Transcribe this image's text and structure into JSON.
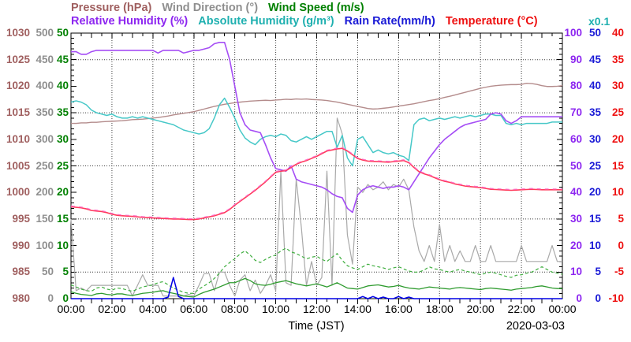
{
  "legend": {
    "row1": [
      {
        "id": "pressure",
        "label": "Pressure (hPa)",
        "color": "#a06060"
      },
      {
        "id": "wind-direction",
        "label": "Wind Direction (°)",
        "color": "#8f8f8f"
      },
      {
        "id": "wind-speed",
        "label": "Wind Speed (m/s)",
        "color": "#008000"
      }
    ],
    "row2": [
      {
        "id": "relative-humidity",
        "label": "Relative Humidity (%)",
        "color": "#8d26f0"
      },
      {
        "id": "absolute-humidity",
        "label": "Absolute Humidity (g/m³)",
        "color": "#1fb0b0"
      },
      {
        "id": "rain-rate",
        "label": "Rain Rate(mm/h)",
        "color": "#1a1ad6"
      },
      {
        "id": "temperature",
        "label": "Temperature (°C)",
        "color": "#ee1010"
      }
    ],
    "scale_note": {
      "text": "x0.1",
      "color": "#1fb0b0"
    }
  },
  "chart_data": {
    "type": "line",
    "title": "",
    "xlabel": "Time (JST)",
    "date": "2020-03-03",
    "x_range_hours": [
      0,
      24
    ],
    "sample_interval_minutes": 15,
    "x_tick_labels": [
      "00:00",
      "02:00",
      "04:00",
      "06:00",
      "08:00",
      "10:00",
      "12:00",
      "14:00",
      "16:00",
      "18:00",
      "20:00",
      "22:00",
      "00:00"
    ],
    "grid": {
      "vertical_hours": [
        2,
        4,
        6,
        8,
        10,
        12,
        14,
        16,
        18,
        20,
        22
      ],
      "horizontal_fracs": [
        0.1,
        0.3,
        0.5,
        0.7,
        0.9
      ]
    },
    "axes_left": [
      {
        "name": "pressure",
        "unit": "hPa",
        "min": 980,
        "max": 1030,
        "color": "#a06060",
        "labels": [
          "1030",
          "1025",
          "1020",
          "1015",
          "1010",
          "1005",
          "1000",
          "995",
          "990",
          "985",
          "980"
        ]
      },
      {
        "name": "wind-direction",
        "unit": "deg",
        "min": 0,
        "max": 500,
        "color": "#8f8f8f",
        "labels": [
          "500",
          "450",
          "400",
          "350",
          "300",
          "250",
          "200",
          "150",
          "100",
          "50",
          "0"
        ]
      },
      {
        "name": "wind-speed",
        "unit": "m/s",
        "min": 0,
        "max": 50,
        "color": "#008000",
        "labels": [
          "50",
          "45",
          "40",
          "35",
          "30",
          "25",
          "20",
          "15",
          "10",
          "5",
          "0"
        ]
      }
    ],
    "axes_right": [
      {
        "name": "relative-humidity",
        "unit": "%",
        "min": 0,
        "max": 100,
        "color": "#8d26f0",
        "labels": [
          "100",
          "90",
          "80",
          "70",
          "60",
          "50",
          "40",
          "30",
          "20",
          "10",
          "0"
        ]
      },
      {
        "name": "rain-rate",
        "unit": "mm/h",
        "min": 0,
        "max": 50,
        "color": "#1a1ad6",
        "labels": [
          "50",
          "45",
          "40",
          "35",
          "30",
          "25",
          "20",
          "15",
          "10",
          "5",
          "0"
        ]
      },
      {
        "name": "temperature",
        "unit": "degC",
        "min": -10,
        "max": 40,
        "color": "#ee1010",
        "labels": [
          "40",
          "35",
          "30",
          "25",
          "20",
          "15",
          "10",
          "5",
          "0",
          "-5",
          "-10"
        ]
      }
    ],
    "series": [
      {
        "name": "pressure",
        "color": "#b48c8c",
        "width": 1.4,
        "dash": null,
        "min": 980,
        "max": 1030,
        "values": [
          1013.0,
          1013.0,
          1013.1,
          1013.1,
          1013.2,
          1013.2,
          1013.3,
          1013.35,
          1013.4,
          1013.45,
          1013.5,
          1013.6,
          1013.7,
          1013.75,
          1013.8,
          1013.9,
          1014.0,
          1014.1,
          1014.25,
          1014.4,
          1014.6,
          1014.75,
          1014.9,
          1015.05,
          1015.2,
          1015.45,
          1015.7,
          1015.95,
          1016.2,
          1016.4,
          1016.6,
          1016.75,
          1016.9,
          1017.0,
          1017.1,
          1017.2,
          1017.25,
          1017.3,
          1017.35,
          1017.3,
          1017.4,
          1017.45,
          1017.55,
          1017.5,
          1017.6,
          1017.55,
          1017.6,
          1017.5,
          1017.45,
          1017.4,
          1017.3,
          1017.15,
          1017.0,
          1016.8,
          1016.6,
          1016.4,
          1016.2,
          1016.0,
          1015.8,
          1015.7,
          1015.75,
          1015.85,
          1015.95,
          1016.1,
          1016.25,
          1016.4,
          1016.55,
          1016.7,
          1016.9,
          1017.1,
          1017.3,
          1017.45,
          1017.65,
          1017.9,
          1018.1,
          1018.35,
          1018.6,
          1018.85,
          1019.1,
          1019.35,
          1019.6,
          1019.8,
          1020.0,
          1020.1,
          1020.2,
          1020.25,
          1020.3,
          1020.3,
          1020.35,
          1020.55,
          1020.5,
          1020.35,
          1020.1,
          1019.95,
          1019.95,
          1020.0,
          1020.1
        ]
      },
      {
        "name": "wind-direction",
        "color": "#a9a9a9",
        "width": 1.2,
        "dash": null,
        "min": 0,
        "max": 500,
        "values": [
          150,
          15,
          20,
          15,
          25,
          25,
          25,
          25,
          25,
          25,
          25,
          25,
          5,
          25,
          45,
          25,
          25,
          25,
          5,
          5,
          5,
          5,
          5,
          8,
          5,
          25,
          47,
          47,
          15,
          50,
          50,
          25,
          5,
          35,
          45,
          15,
          35,
          10,
          25,
          45,
          15,
          240,
          30,
          25,
          225,
          135,
          25,
          70,
          25,
          40,
          240,
          25,
          340,
          310,
          120,
          65,
          210,
          200,
          215,
          205,
          210,
          220,
          205,
          215,
          210,
          225,
          205,
          135,
          90,
          70,
          100,
          70,
          140,
          70,
          100,
          70,
          90,
          70,
          70,
          100,
          70,
          70,
          100,
          70,
          70,
          70,
          70,
          70,
          100,
          70,
          70,
          70,
          70,
          70,
          100,
          70,
          70
        ]
      },
      {
        "name": "wind-speed",
        "color": "#2e9b2e",
        "width": 1.3,
        "dash": null,
        "min": 0,
        "max": 50,
        "values": [
          1.3,
          1.0,
          0.8,
          0.7,
          0.6,
          0.9,
          1.0,
          0.8,
          0.7,
          0.9,
          0.9,
          0.7,
          0.6,
          0.8,
          1.0,
          1.1,
          1.2,
          1.4,
          1.5,
          1.2,
          1.0,
          0.8,
          0.5,
          0.4,
          0.3,
          0.8,
          1.2,
          1.5,
          1.8,
          2.2,
          2.6,
          3.0,
          3.0,
          3.4,
          3.8,
          3.4,
          2.8,
          2.6,
          2.5,
          2.7,
          3.0,
          3.2,
          3.4,
          3.1,
          2.8,
          2.6,
          2.4,
          2.6,
          2.8,
          2.5,
          2.2,
          2.6,
          3.0,
          2.5,
          2.0,
          1.9,
          1.8,
          2.1,
          2.4,
          2.5,
          2.6,
          2.4,
          2.2,
          2.3,
          2.5,
          2.2,
          2.0,
          1.9,
          1.8,
          2.0,
          2.2,
          2.1,
          2.0,
          1.9,
          1.8,
          2.0,
          2.1,
          2.0,
          1.9,
          1.8,
          1.7,
          1.9,
          2.0,
          1.9,
          1.8,
          1.7,
          1.6,
          1.8,
          1.9,
          2.0,
          2.1,
          2.3,
          2.4,
          2.2,
          2.0,
          1.9,
          1.9
        ]
      },
      {
        "name": "wind-gust",
        "color": "#3fae3f",
        "width": 1.2,
        "dash": "4,3",
        "min": 0,
        "max": 50,
        "values": [
          2.6,
          2.2,
          1.8,
          1.5,
          1.4,
          2.0,
          2.2,
          1.8,
          1.6,
          2.0,
          1.9,
          1.6,
          1.4,
          1.8,
          2.2,
          2.4,
          2.6,
          3.0,
          3.2,
          2.6,
          2.0,
          1.6,
          1.2,
          1.0,
          1.0,
          1.8,
          2.4,
          3.0,
          3.8,
          4.8,
          6.0,
          6.8,
          7.5,
          8.4,
          9.0,
          8.2,
          7.2,
          6.8,
          7.4,
          7.9,
          8.2,
          9.0,
          9.5,
          8.8,
          8.5,
          8.0,
          7.5,
          7.8,
          8.0,
          7.4,
          7.0,
          7.8,
          8.5,
          7.2,
          6.2,
          5.8,
          5.5,
          6.0,
          6.5,
          6.2,
          6.0,
          5.8,
          5.5,
          5.8,
          6.0,
          5.6,
          5.2,
          5.0,
          5.0,
          5.4,
          6.0,
          5.6,
          5.5,
          5.2,
          5.0,
          5.3,
          5.5,
          5.2,
          5.0,
          4.8,
          4.5,
          4.8,
          5.0,
          4.8,
          4.5,
          4.2,
          4.0,
          4.4,
          4.5,
          4.8,
          5.0,
          5.5,
          6.0,
          5.5,
          5.0,
          4.8,
          4.6
        ]
      },
      {
        "name": "absolute-humidity",
        "color": "#46c8c8",
        "width": 1.5,
        "dash": null,
        "min": 0,
        "max": 10,
        "values": [
          7.4,
          7.45,
          7.4,
          7.3,
          7.1,
          7.0,
          6.95,
          6.9,
          6.95,
          6.85,
          6.8,
          6.8,
          6.85,
          6.8,
          6.85,
          6.8,
          6.75,
          6.7,
          6.65,
          6.6,
          6.55,
          6.45,
          6.35,
          6.3,
          6.25,
          6.2,
          6.25,
          6.4,
          6.8,
          7.3,
          7.55,
          7.2,
          6.8,
          6.35,
          6.05,
          5.9,
          5.8,
          6.0,
          6.1,
          6.15,
          6.1,
          6.2,
          6.15,
          5.95,
          5.9,
          6.0,
          6.1,
          6.0,
          6.1,
          6.2,
          6.3,
          6.3,
          5.7,
          6.15,
          5.3,
          5.0,
          6.0,
          6.1,
          5.8,
          5.5,
          5.6,
          5.5,
          5.45,
          5.5,
          5.4,
          5.35,
          5.2,
          6.55,
          6.75,
          6.8,
          6.7,
          6.75,
          6.8,
          6.75,
          6.8,
          6.85,
          6.8,
          6.85,
          6.9,
          6.85,
          6.9,
          6.95,
          6.95,
          6.9,
          6.9,
          6.6,
          6.55,
          6.6,
          6.55,
          6.6,
          6.6,
          6.6,
          6.6,
          6.6,
          6.65,
          6.65,
          6.65
        ]
      },
      {
        "name": "relative-humidity",
        "color": "#a54df5",
        "width": 1.6,
        "dash": null,
        "min": 0,
        "max": 100,
        "values": [
          93,
          93,
          92,
          92,
          93,
          93.5,
          93.5,
          93.5,
          93.5,
          93.5,
          93.5,
          93.5,
          93.5,
          93.5,
          93.5,
          93.5,
          93.5,
          92.5,
          93.5,
          93.5,
          93.5,
          93.5,
          92.5,
          93,
          93.5,
          93.5,
          94,
          94.5,
          96,
          96.5,
          96.5,
          90,
          80,
          70,
          65.5,
          63.5,
          63,
          62.5,
          58,
          53,
          49,
          48.5,
          48,
          50,
          45,
          44,
          43.5,
          43,
          42.5,
          42,
          41,
          39.5,
          38.5,
          38,
          34,
          32.5,
          39,
          41,
          42,
          42.5,
          42,
          41.5,
          42,
          42,
          42.5,
          42,
          41,
          44,
          47,
          50,
          53,
          55.5,
          58,
          60,
          61.5,
          63,
          64.5,
          65.5,
          66,
          66.5,
          67,
          67.5,
          69.5,
          70,
          69.5,
          67,
          66,
          67,
          68.5,
          68.5,
          68.5,
          68.5,
          68.5,
          68.5,
          68.5,
          68.5,
          68.5
        ]
      },
      {
        "name": "rain-rate",
        "color": "#0000e6",
        "width": 1.5,
        "dash": null,
        "min": 0,
        "max": 50,
        "values": [
          0,
          0,
          0,
          0,
          0,
          0,
          0,
          0,
          0,
          0,
          0,
          0,
          0,
          0,
          0,
          0,
          0,
          0,
          0,
          0.3,
          4.0,
          0.4,
          0,
          0,
          0,
          0,
          0,
          0,
          0,
          0,
          0,
          0,
          0,
          0,
          0,
          0,
          0,
          0,
          0,
          0,
          0,
          0,
          0,
          0,
          0,
          0,
          0,
          0,
          0,
          0,
          0,
          0,
          0,
          0,
          0,
          0,
          0,
          0.4,
          0,
          0.4,
          0,
          0.3,
          0,
          0,
          0.4,
          0,
          0.3,
          0,
          0,
          0,
          0,
          0,
          0,
          0,
          0,
          0,
          0,
          0,
          0,
          0,
          0,
          0,
          0,
          0,
          0,
          0,
          0,
          0,
          0,
          0,
          0,
          0,
          0,
          0,
          0,
          0,
          0
        ]
      },
      {
        "name": "temperature",
        "color": "#ff3b5c",
        "width": 1.6,
        "dash": null,
        "min": -10,
        "max": 40,
        "values": [
          7.3,
          7.2,
          7.1,
          6.9,
          6.6,
          6.5,
          6.4,
          6.2,
          5.9,
          5.7,
          5.6,
          5.55,
          5.5,
          5.4,
          5.3,
          5.25,
          5.2,
          5.15,
          5.1,
          5.05,
          5.0,
          5.0,
          4.95,
          4.9,
          4.9,
          5.0,
          5.2,
          5.4,
          5.6,
          5.9,
          6.2,
          6.8,
          7.6,
          8.3,
          9.0,
          9.7,
          10.4,
          11.2,
          12.0,
          12.9,
          13.8,
          14.0,
          14.1,
          14.7,
          15.3,
          15.7,
          16.0,
          16.4,
          16.8,
          17.3,
          17.8,
          18.0,
          18.2,
          18.3,
          17.8,
          17.1,
          16.4,
          16.1,
          15.9,
          15.85,
          15.8,
          15.75,
          15.7,
          15.8,
          15.9,
          16.0,
          15.6,
          14.7,
          13.9,
          13.5,
          13.2,
          12.8,
          12.4,
          12.1,
          11.9,
          11.6,
          11.4,
          11.2,
          11.1,
          11.0,
          10.9,
          10.75,
          10.6,
          10.55,
          10.5,
          10.45,
          10.4,
          10.45,
          10.5,
          10.55,
          10.6,
          10.55,
          10.5,
          10.5,
          10.5,
          10.5,
          10.5
        ]
      },
      {
        "name": "temperature-dashed",
        "color": "#ff6ec7",
        "width": 1.2,
        "dash": "5,5",
        "min": -10,
        "max": 40,
        "base": "temperature",
        "offset": 0.15
      }
    ]
  }
}
